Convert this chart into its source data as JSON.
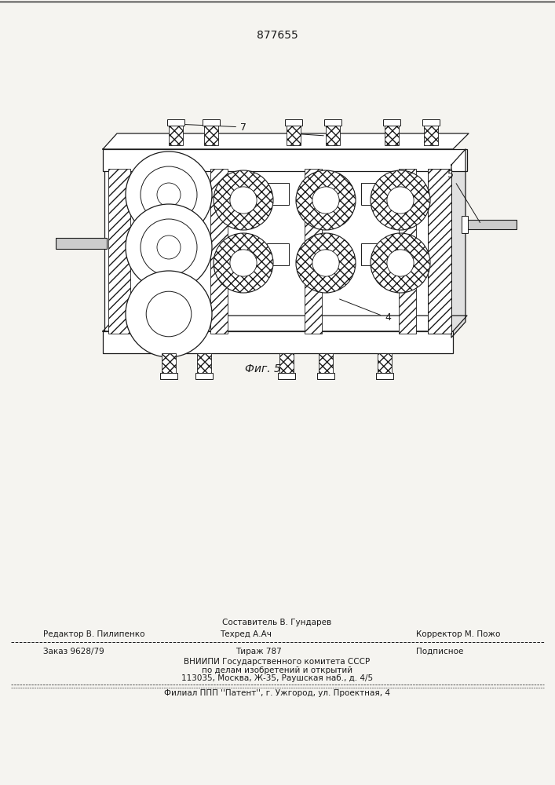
{
  "patent_number": "877655",
  "fig_label": "Фиг. 5",
  "bg_color": "#f5f4f0",
  "line_color": "#1a1a1a",
  "footer": {
    "sestavitel_label": "Составитель В. Гундарев",
    "redaktor_label": "Редактор В. Пилипенко",
    "tehred_label": "Техред А.Ач",
    "korrektor_label": "Корректор М. Пожо",
    "zakaz": "Заказ 9628/79",
    "tirazh": "Тираж 787",
    "podpisnoe": "Подписное",
    "vniipи": "ВНИИПИ Государственного комитета СССР",
    "po_delam": "по делам изобретений и открытий",
    "address": "113035, Москва, Ж-35, Раушская наб., д. 4/5",
    "filial": "Филиал ППП ''Патент'', г. Ужгород, ул. Проектная, 4"
  }
}
